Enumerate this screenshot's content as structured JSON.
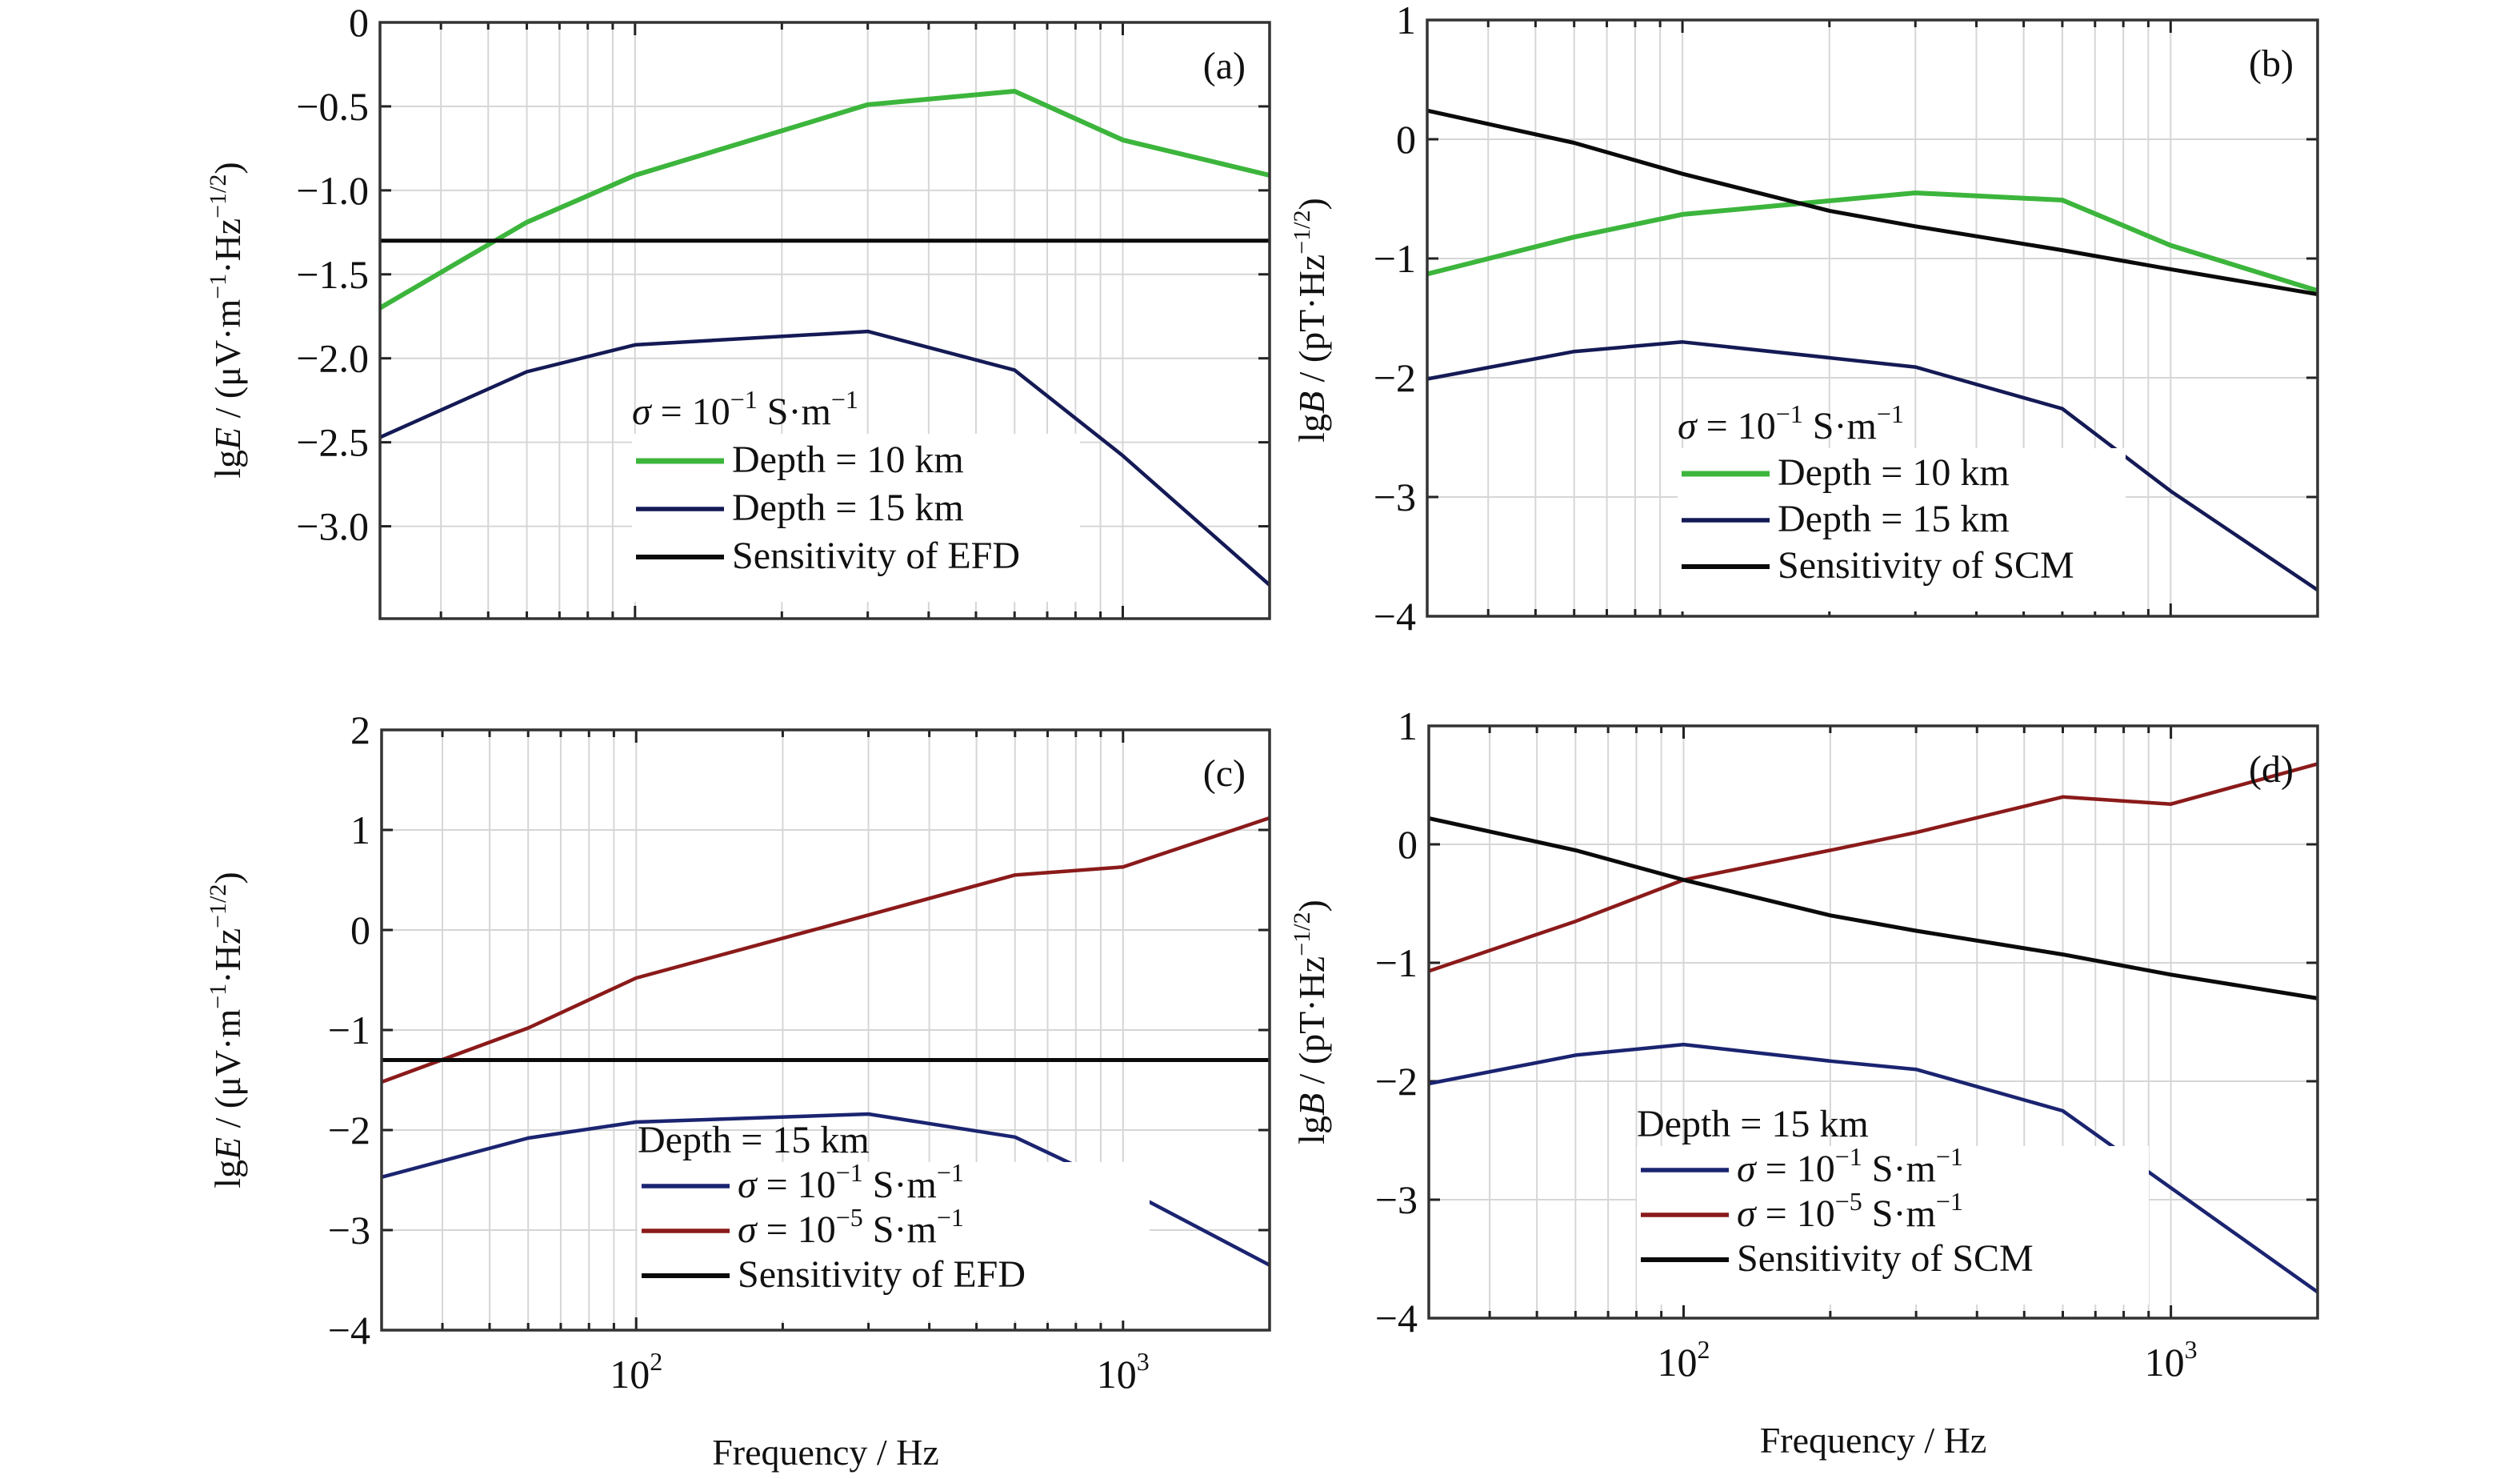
{
  "figure": {
    "xlabel": "Frequency / Hz",
    "x_tick_labels": [
      {
        "base": "10",
        "exp": "2",
        "value": 100
      },
      {
        "base": "10",
        "exp": "3",
        "value": 1000
      }
    ]
  },
  "chart_data": [
    {
      "id": "a",
      "type": "line",
      "panel_label": "(a)",
      "title": "",
      "xlabel": "Frequency / Hz",
      "ylabel": "lgE / (μV·m⁻¹·Hz⁻¹ᐟ²)",
      "ylabel_parts": {
        "prefix": "lg",
        "var": "E",
        "units": " / (μV·m",
        "exp1": "−1",
        "mid": "·Hz",
        "exp2": "−1/2",
        "close": ")"
      },
      "xscale": "log",
      "xlim": [
        30,
        2000
      ],
      "ylim": [
        -3.55,
        0
      ],
      "yticks": [
        0,
        -0.5,
        -1.0,
        -1.5,
        -2.0,
        -2.5,
        -3.0
      ],
      "ytick_labels": [
        "0",
        "−0.5",
        "−1.0",
        "−1.5",
        "−2.0",
        "−2.5",
        "−3.0"
      ],
      "grid": true,
      "legend_title": {
        "prefix": "σ = 10",
        "exp1": "−1",
        "mid": " S·m",
        "exp2": "−1"
      },
      "legend_placement": "lower-center",
      "series": [
        {
          "name": "Depth = 10 km",
          "color": "#3cb53c",
          "width": 6,
          "x": [
            30,
            60,
            100,
            300,
            600,
            1000,
            2000
          ],
          "y": [
            -1.7,
            -1.19,
            -0.91,
            -0.49,
            -0.41,
            -0.7,
            -0.91
          ]
        },
        {
          "name": "Depth = 15 km",
          "color": "#141a55",
          "width": 4.5,
          "x": [
            30,
            60,
            100,
            300,
            600,
            1000,
            2000
          ],
          "y": [
            -2.47,
            -2.08,
            -1.92,
            -1.84,
            -2.07,
            -2.58,
            -3.35
          ]
        },
        {
          "name": "Sensitivity of EFD",
          "color": "#0a0a0a",
          "width": 5,
          "x": [
            30,
            2000
          ],
          "y": [
            -1.3,
            -1.3
          ]
        }
      ]
    },
    {
      "id": "b",
      "type": "line",
      "panel_label": "(b)",
      "title": "",
      "xlabel": "Frequency / Hz",
      "ylabel": "lgB / (pT·Hz⁻¹ᐟ²)",
      "ylabel_parts": {
        "prefix": "lg",
        "var": "B",
        "units": " / (pT",
        "exp1": "",
        "mid": "·Hz",
        "exp2": "−1/2",
        "close": ")"
      },
      "xscale": "log",
      "xlim": [
        30,
        2000
      ],
      "ylim": [
        -4,
        1
      ],
      "yticks": [
        1,
        0,
        -1,
        -2,
        -3,
        -4
      ],
      "ytick_labels": [
        "1",
        "0",
        "−1",
        "−2",
        "−3",
        "−4"
      ],
      "grid": true,
      "legend_title": {
        "prefix": "σ = 10",
        "exp1": "−1",
        "mid": " S·m",
        "exp2": "−1"
      },
      "legend_placement": "lower-center",
      "series": [
        {
          "name": "Depth = 10 km",
          "color": "#3cb53c",
          "width": 6,
          "x": [
            30,
            60,
            100,
            300,
            600,
            1000,
            2000
          ],
          "y": [
            -1.13,
            -0.82,
            -0.63,
            -0.45,
            -0.51,
            -0.89,
            -1.27
          ]
        },
        {
          "name": "Depth = 15 km",
          "color": "#141a55",
          "width": 4.5,
          "x": [
            30,
            60,
            100,
            300,
            600,
            1000,
            2000
          ],
          "y": [
            -2.01,
            -1.78,
            -1.7,
            -1.91,
            -2.26,
            -2.95,
            -3.78
          ]
        },
        {
          "name": "Sensitivity of SCM",
          "color": "#0a0a0a",
          "width": 5,
          "x": [
            30,
            60,
            100,
            200,
            300,
            600,
            1000,
            2000
          ],
          "y": [
            0.24,
            -0.03,
            -0.29,
            -0.6,
            -0.73,
            -0.93,
            -1.09,
            -1.3
          ]
        }
      ]
    },
    {
      "id": "c",
      "type": "line",
      "panel_label": "(c)",
      "title": "",
      "xlabel": "Frequency / Hz",
      "ylabel": "lgE / (μV·m⁻¹·Hz⁻¹ᐟ²)",
      "ylabel_parts": {
        "prefix": "lg",
        "var": "E",
        "units": " / (μV·m",
        "exp1": "−1",
        "mid": "·Hz",
        "exp2": "−1/2",
        "close": ")"
      },
      "xscale": "log",
      "xlim": [
        30,
        2000
      ],
      "ylim": [
        -4,
        2
      ],
      "yticks": [
        2,
        1,
        0,
        -1,
        -2,
        -3,
        -4
      ],
      "ytick_labels": [
        "2",
        "1",
        "0",
        "−1",
        "−2",
        "−3",
        "−4"
      ],
      "grid": true,
      "legend_title": {
        "prefix": "Depth = 15 km",
        "exp1": "",
        "mid": "",
        "exp2": ""
      },
      "legend_placement": "lower-center",
      "series": [
        {
          "name": "σ = 10⁻¹ S·m⁻¹",
          "name_parts": {
            "prefix": "σ = 10",
            "exp1": "−1",
            "mid": " S·m",
            "exp2": "−1"
          },
          "color": "#1b2470",
          "width": 4.5,
          "x": [
            30,
            60,
            100,
            300,
            600,
            1000,
            2000
          ],
          "y": [
            -2.47,
            -2.08,
            -1.92,
            -1.84,
            -2.07,
            -2.58,
            -3.35
          ]
        },
        {
          "name": "σ = 10⁻⁵ S·m⁻¹",
          "name_parts": {
            "prefix": "σ = 10",
            "exp1": "−5",
            "mid": " S·m",
            "exp2": "−1"
          },
          "color": "#8b1a1a",
          "width": 4.5,
          "x": [
            30,
            60,
            100,
            300,
            600,
            1000,
            2000
          ],
          "y": [
            -1.52,
            -0.98,
            -0.48,
            0.15,
            0.55,
            0.63,
            1.12
          ]
        },
        {
          "name": "Sensitivity of EFD",
          "color": "#0a0a0a",
          "width": 5,
          "x": [
            30,
            2000
          ],
          "y": [
            -1.3,
            -1.3
          ]
        }
      ]
    },
    {
      "id": "d",
      "type": "line",
      "panel_label": "(d)",
      "title": "",
      "xlabel": "Frequency / Hz",
      "ylabel": "lgB / (pT·Hz⁻¹ᐟ²)",
      "ylabel_parts": {
        "prefix": "lg",
        "var": "B",
        "units": " / (pT",
        "exp1": "",
        "mid": "·Hz",
        "exp2": "−1/2",
        "close": ")"
      },
      "xscale": "log",
      "xlim": [
        30,
        2000
      ],
      "ylim": [
        -4,
        1
      ],
      "yticks": [
        1,
        0,
        -1,
        -2,
        -3,
        -4
      ],
      "ytick_labels": [
        "1",
        "0",
        "−1",
        "−2",
        "−3",
        "−4"
      ],
      "grid": true,
      "legend_title": {
        "prefix": "Depth = 15 km",
        "exp1": "",
        "mid": "",
        "exp2": ""
      },
      "legend_placement": "lower-center",
      "series": [
        {
          "name": "σ = 10⁻¹ S·m⁻¹",
          "name_parts": {
            "prefix": "σ = 10",
            "exp1": "−1",
            "mid": " S·m",
            "exp2": "−1"
          },
          "color": "#1b2470",
          "width": 4.5,
          "x": [
            30,
            60,
            100,
            200,
            300,
            600,
            1000,
            2000
          ],
          "y": [
            -2.02,
            -1.78,
            -1.69,
            -1.83,
            -1.9,
            -2.25,
            -2.9,
            -3.78
          ]
        },
        {
          "name": "σ = 10⁻⁵ S·m⁻¹",
          "name_parts": {
            "prefix": "σ = 10",
            "exp1": "−5",
            "mid": " S·m",
            "exp2": "−1"
          },
          "color": "#8b1a1a",
          "width": 4.5,
          "x": [
            30,
            60,
            100,
            200,
            300,
            600,
            1000,
            2000
          ],
          "y": [
            -1.07,
            -0.65,
            -0.3,
            -0.05,
            0.1,
            0.4,
            0.34,
            0.68
          ]
        },
        {
          "name": "Sensitivity of SCM",
          "color": "#0a0a0a",
          "width": 5,
          "x": [
            30,
            60,
            100,
            200,
            300,
            600,
            1000,
            2000
          ],
          "y": [
            0.22,
            -0.05,
            -0.3,
            -0.6,
            -0.73,
            -0.93,
            -1.1,
            -1.3
          ]
        }
      ]
    }
  ]
}
